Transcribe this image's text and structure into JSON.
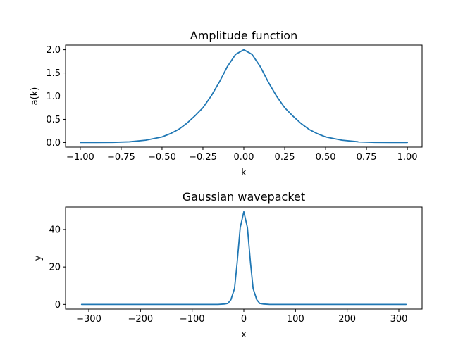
{
  "chart_data": [
    {
      "type": "line",
      "title": "Amplitude function",
      "xlabel": "k",
      "ylabel": "a(k)",
      "xlim": [
        -1.09,
        1.09
      ],
      "ylim": [
        -0.1,
        2.1
      ],
      "xticks": [
        -1.0,
        -0.75,
        -0.5,
        -0.25,
        0.0,
        0.25,
        0.5,
        0.75,
        1.0
      ],
      "xtick_labels": [
        "−1.00",
        "−0.75",
        "−0.50",
        "−0.25",
        "0.00",
        "0.25",
        "0.50",
        "0.75",
        "1.00"
      ],
      "yticks": [
        0.0,
        0.5,
        1.0,
        1.5,
        2.0
      ],
      "ytick_labels": [
        "0.0",
        "0.5",
        "1.0",
        "1.5",
        "2.0"
      ],
      "grid": false,
      "series": [
        {
          "color": "#1f77b4",
          "x": [
            -1.0,
            -0.9,
            -0.8,
            -0.7,
            -0.6,
            -0.5,
            -0.45,
            -0.4,
            -0.35,
            -0.3,
            -0.25,
            -0.2,
            -0.15,
            -0.1,
            -0.05,
            0.0,
            0.05,
            0.1,
            0.15,
            0.2,
            0.25,
            0.3,
            0.35,
            0.4,
            0.45,
            0.5,
            0.6,
            0.7,
            0.8,
            0.9,
            1.0
          ],
          "y": [
            0.0,
            0.0,
            0.003,
            0.015,
            0.05,
            0.12,
            0.19,
            0.28,
            0.41,
            0.57,
            0.75,
            1.0,
            1.3,
            1.64,
            1.9,
            2.0,
            1.9,
            1.64,
            1.3,
            1.0,
            0.75,
            0.57,
            0.41,
            0.28,
            0.19,
            0.12,
            0.05,
            0.015,
            0.003,
            0.0,
            0.0
          ]
        }
      ]
    },
    {
      "type": "line",
      "title": "Gaussian wavepacket",
      "xlabel": "x",
      "ylabel": "y",
      "xlim": [
        -345,
        345
      ],
      "ylim": [
        -2.5,
        52
      ],
      "xticks": [
        -300,
        -200,
        -100,
        0,
        100,
        200,
        300
      ],
      "xtick_labels": [
        "−300",
        "−200",
        "−100",
        "0",
        "100",
        "200",
        "300"
      ],
      "yticks": [
        0,
        20,
        40
      ],
      "ytick_labels": [
        "0",
        "20",
        "40"
      ],
      "grid": false,
      "series": [
        {
          "color": "#1f77b4",
          "x": [
            -314,
            -50,
            -38,
            -31,
            -25,
            -18,
            -13,
            -7,
            0,
            7,
            13,
            18,
            25,
            31,
            38,
            50,
            314
          ],
          "y": [
            0,
            0,
            0.2,
            0.5,
            2.5,
            8.5,
            22,
            41,
            49.5,
            41,
            22,
            8.5,
            2.5,
            0.5,
            0.2,
            0,
            0
          ]
        }
      ]
    }
  ]
}
